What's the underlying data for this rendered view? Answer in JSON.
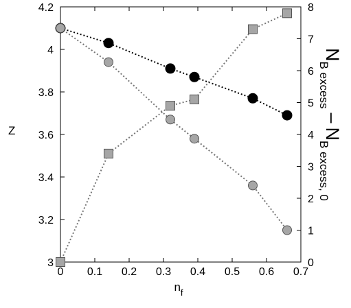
{
  "chart_data": {
    "type": "scatter",
    "xlabel": "n",
    "xlabel_sub": "f",
    "ylabel": "Z",
    "y2label": {
      "part1": "N",
      "part1_sub": "B excess",
      "minus": "–",
      "part2": "N",
      "part2_sub": "B excess, 0"
    },
    "xlim": [
      0,
      0.7
    ],
    "ylim": [
      3.0,
      4.2
    ],
    "y2lim": [
      0,
      8
    ],
    "x_ticks": [
      "0",
      "0.1",
      "0.2",
      "0.3",
      "0.4",
      "0.5",
      "0.6",
      "0.7"
    ],
    "y_ticks": [
      "3",
      "3.2",
      "3.4",
      "3.6",
      "3.8",
      "4",
      "4.2"
    ],
    "y2_ticks": [
      "0",
      "1",
      "2",
      "3",
      "4",
      "5",
      "6",
      "7",
      "8"
    ],
    "grid": false,
    "legend": "none",
    "series": [
      {
        "axis": "left",
        "marker": "circle",
        "color": "#000000",
        "line_color": "#000000",
        "x": [
          0.0,
          0.14,
          0.32,
          0.39,
          0.56,
          0.66
        ],
        "y": [
          4.1,
          4.03,
          3.91,
          3.87,
          3.77,
          3.69
        ]
      },
      {
        "axis": "left",
        "marker": "circle",
        "color": "#a6a6a6",
        "line_color": "#777777",
        "x": [
          0.0,
          0.14,
          0.32,
          0.39,
          0.56,
          0.66
        ],
        "y": [
          4.1,
          3.94,
          3.67,
          3.58,
          3.36,
          3.15
        ]
      },
      {
        "axis": "right",
        "marker": "square",
        "color": "#a6a6a6",
        "line_color": "#777777",
        "x": [
          0.0,
          0.14,
          0.32,
          0.39,
          0.56,
          0.66
        ],
        "y": [
          0.0,
          3.4,
          4.9,
          5.1,
          7.3,
          7.8
        ]
      }
    ]
  }
}
